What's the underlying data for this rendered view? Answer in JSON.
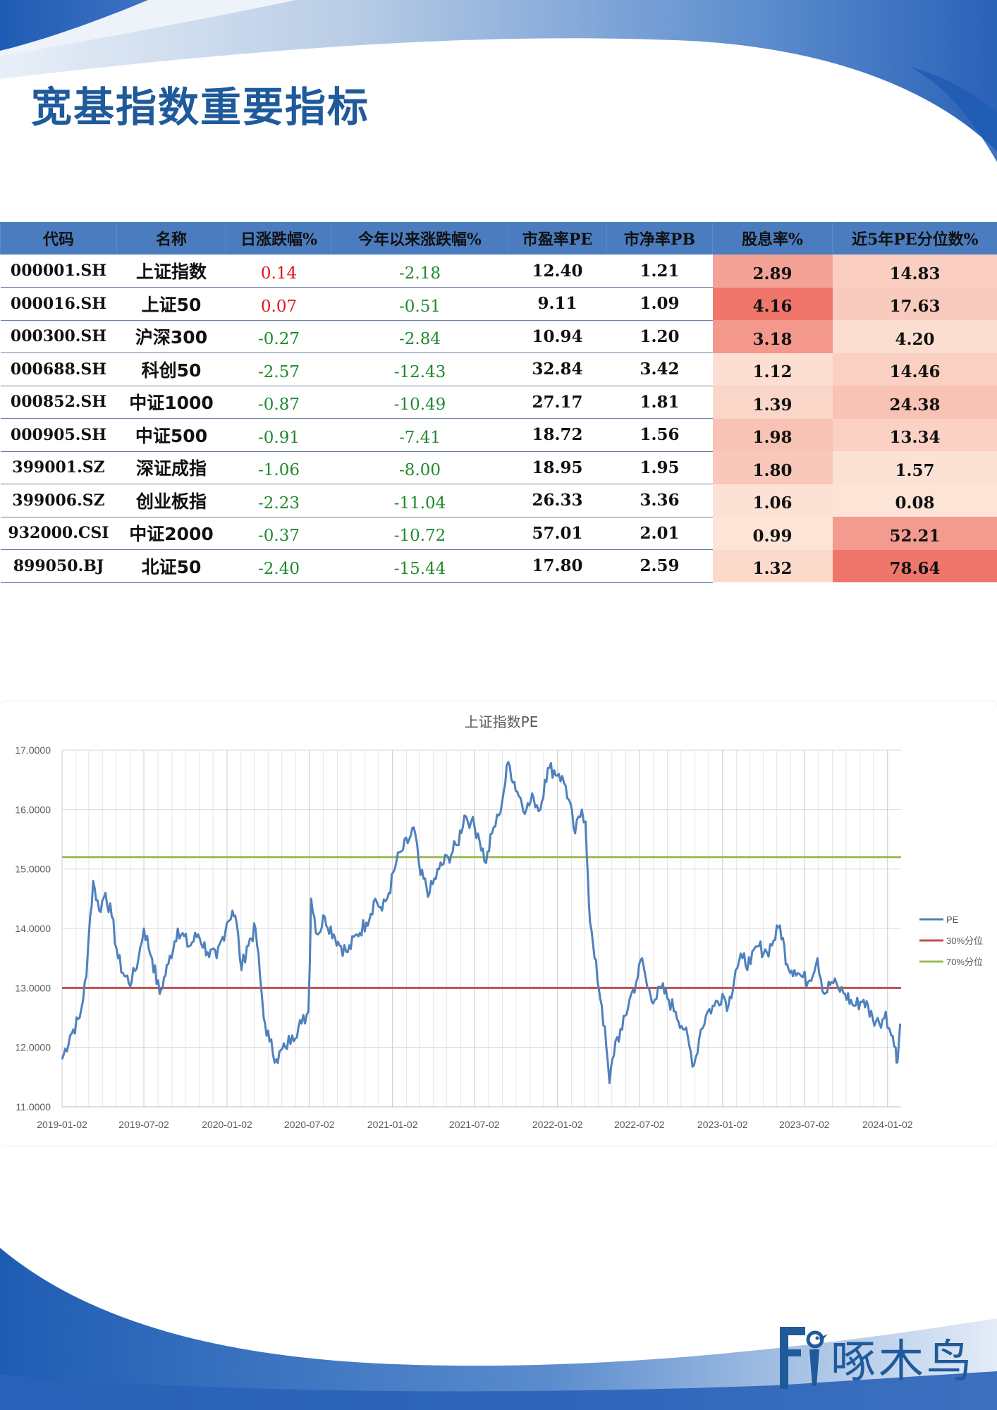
{
  "title": "宽基指数重要指标",
  "table": {
    "headers": [
      "代码",
      "名称",
      "日涨跌幅%",
      "今年以来涨跌幅%",
      "市盈率PE",
      "市净率PB",
      "股息率%",
      "近5年PE分位数%"
    ],
    "rows": [
      {
        "code": "000001.SH",
        "name": "上证指数",
        "day": "0.14",
        "ytd": "-2.18",
        "pe": "12.40",
        "pb": "1.21",
        "div": "2.89",
        "pct": "14.83"
      },
      {
        "code": "000016.SH",
        "name": "上证50",
        "day": "0.07",
        "ytd": "-0.51",
        "pe": "9.11",
        "pb": "1.09",
        "div": "4.16",
        "pct": "17.63"
      },
      {
        "code": "000300.SH",
        "name": "沪深300",
        "day": "-0.27",
        "ytd": "-2.84",
        "pe": "10.94",
        "pb": "1.20",
        "div": "3.18",
        "pct": "4.20"
      },
      {
        "code": "000688.SH",
        "name": "科创50",
        "day": "-2.57",
        "ytd": "-12.43",
        "pe": "32.84",
        "pb": "3.42",
        "div": "1.12",
        "pct": "14.46"
      },
      {
        "code": "000852.SH",
        "name": "中证1000",
        "day": "-0.87",
        "ytd": "-10.49",
        "pe": "27.17",
        "pb": "1.81",
        "div": "1.39",
        "pct": "24.38"
      },
      {
        "code": "000905.SH",
        "name": "中证500",
        "day": "-0.91",
        "ytd": "-7.41",
        "pe": "18.72",
        "pb": "1.56",
        "div": "1.98",
        "pct": "13.34"
      },
      {
        "code": "399001.SZ",
        "name": "深证成指",
        "day": "-1.06",
        "ytd": "-8.00",
        "pe": "18.95",
        "pb": "1.95",
        "div": "1.80",
        "pct": "1.57"
      },
      {
        "code": "399006.SZ",
        "name": "创业板指",
        "day": "-2.23",
        "ytd": "-11.04",
        "pe": "26.33",
        "pb": "3.36",
        "div": "1.06",
        "pct": "0.08"
      },
      {
        "code": "932000.CSI",
        "name": "中证2000",
        "day": "-0.37",
        "ytd": "-10.72",
        "pe": "57.01",
        "pb": "2.01",
        "div": "0.99",
        "pct": "52.21"
      },
      {
        "code": "899050.BJ",
        "name": "北证50",
        "day": "-2.40",
        "ytd": "-15.44",
        "pe": "17.80",
        "pb": "2.59",
        "div": "1.32",
        "pct": "78.64"
      }
    ]
  },
  "colors": {
    "brand": "#1f5a9b",
    "header_bg": "#4a7cbf",
    "positive": "#e0141b",
    "negative": "#1e8a2c",
    "pe_line": "#4f81bd",
    "line_30": "#c0504d",
    "line_70": "#9bbb59"
  },
  "chart_data": {
    "type": "line",
    "title": "上证指数PE",
    "ylim": [
      11,
      17
    ],
    "y_ticks": [
      "11.0000",
      "12.0000",
      "13.0000",
      "14.0000",
      "15.0000",
      "16.0000",
      "17.0000"
    ],
    "x_ticks": [
      "2019-01-02",
      "2019-07-02",
      "2020-01-02",
      "2020-07-02",
      "2021-01-02",
      "2021-07-02",
      "2022-01-02",
      "2022-07-02",
      "2023-01-02",
      "2023-07-02",
      "2024-01-02"
    ],
    "grid": true,
    "legend_position": "right",
    "series": [
      {
        "name": "PE",
        "color": "#4f81bd",
        "points": [
          [
            "2019-01-02",
            11.8
          ],
          [
            "2019-01-20",
            12.2
          ],
          [
            "2019-02-10",
            12.5
          ],
          [
            "2019-02-25",
            13.2
          ],
          [
            "2019-03-05",
            14.2
          ],
          [
            "2019-03-12",
            14.8
          ],
          [
            "2019-03-25",
            14.3
          ],
          [
            "2019-04-08",
            14.6
          ],
          [
            "2019-04-22",
            14.2
          ],
          [
            "2019-05-06",
            13.5
          ],
          [
            "2019-05-20",
            13.2
          ],
          [
            "2019-06-05",
            13.1
          ],
          [
            "2019-06-20",
            13.5
          ],
          [
            "2019-07-02",
            14.0
          ],
          [
            "2019-07-20",
            13.5
          ],
          [
            "2019-08-06",
            12.9
          ],
          [
            "2019-08-25",
            13.4
          ],
          [
            "2019-09-15",
            14.0
          ],
          [
            "2019-10-10",
            13.7
          ],
          [
            "2019-10-30",
            13.9
          ],
          [
            "2019-11-20",
            13.6
          ],
          [
            "2019-12-10",
            13.5
          ],
          [
            "2020-01-02",
            14.1
          ],
          [
            "2020-01-14",
            14.3
          ],
          [
            "2020-01-23",
            14.1
          ],
          [
            "2020-02-03",
            13.3
          ],
          [
            "2020-02-15",
            13.7
          ],
          [
            "2020-03-05",
            14.0
          ],
          [
            "2020-03-15",
            13.2
          ],
          [
            "2020-03-23",
            12.5
          ],
          [
            "2020-04-05",
            12.1
          ],
          [
            "2020-04-20",
            11.8
          ],
          [
            "2020-05-10",
            12.0
          ],
          [
            "2020-05-25",
            12.2
          ],
          [
            "2020-06-15",
            12.4
          ],
          [
            "2020-06-30",
            12.6
          ],
          [
            "2020-07-06",
            14.5
          ],
          [
            "2020-07-20",
            13.9
          ],
          [
            "2020-08-05",
            14.2
          ],
          [
            "2020-08-25",
            13.9
          ],
          [
            "2020-09-10",
            13.7
          ],
          [
            "2020-09-25",
            13.6
          ],
          [
            "2020-10-15",
            13.9
          ],
          [
            "2020-11-05",
            14.1
          ],
          [
            "2020-11-25",
            14.5
          ],
          [
            "2020-12-10",
            14.3
          ],
          [
            "2020-12-25",
            14.6
          ],
          [
            "2021-01-10",
            15.1
          ],
          [
            "2021-01-22",
            15.3
          ],
          [
            "2021-02-08",
            15.5
          ],
          [
            "2021-02-18",
            15.7
          ],
          [
            "2021-03-05",
            14.9
          ],
          [
            "2021-03-25",
            14.6
          ],
          [
            "2021-04-15",
            15.0
          ],
          [
            "2021-05-05",
            15.2
          ],
          [
            "2021-05-25",
            15.4
          ],
          [
            "2021-06-10",
            15.9
          ],
          [
            "2021-06-25",
            15.8
          ],
          [
            "2021-07-10",
            15.6
          ],
          [
            "2021-07-28",
            15.1
          ],
          [
            "2021-08-10",
            15.6
          ],
          [
            "2021-08-25",
            15.9
          ],
          [
            "2021-09-05",
            16.3
          ],
          [
            "2021-09-15",
            16.8
          ],
          [
            "2021-10-05",
            16.3
          ],
          [
            "2021-10-25",
            16.0
          ],
          [
            "2021-11-10",
            16.2
          ],
          [
            "2021-11-25",
            16.0
          ],
          [
            "2021-12-05",
            16.5
          ],
          [
            "2021-12-15",
            16.7
          ],
          [
            "2022-01-05",
            16.6
          ],
          [
            "2022-01-20",
            16.4
          ],
          [
            "2022-02-10",
            15.6
          ],
          [
            "2022-02-25",
            16.0
          ],
          [
            "2022-03-05",
            15.8
          ],
          [
            "2022-03-10",
            14.9
          ],
          [
            "2022-03-15",
            14.1
          ],
          [
            "2022-03-25",
            13.5
          ],
          [
            "2022-04-10",
            12.7
          ],
          [
            "2022-04-20",
            12.0
          ],
          [
            "2022-04-27",
            11.4
          ],
          [
            "2022-05-10",
            12.1
          ],
          [
            "2022-05-25",
            12.3
          ],
          [
            "2022-06-10",
            12.8
          ],
          [
            "2022-06-25",
            13.1
          ],
          [
            "2022-07-08",
            13.5
          ],
          [
            "2022-07-20",
            13.0
          ],
          [
            "2022-08-05",
            12.8
          ],
          [
            "2022-08-20",
            13.0
          ],
          [
            "2022-09-05",
            12.8
          ],
          [
            "2022-09-20",
            12.6
          ],
          [
            "2022-10-10",
            12.3
          ],
          [
            "2022-10-31",
            11.7
          ],
          [
            "2022-11-15",
            12.3
          ],
          [
            "2022-11-30",
            12.6
          ],
          [
            "2022-12-15",
            12.7
          ],
          [
            "2023-01-02",
            12.9
          ],
          [
            "2023-01-15",
            12.7
          ],
          [
            "2023-01-31",
            13.3
          ],
          [
            "2023-02-15",
            13.5
          ],
          [
            "2023-03-05",
            13.4
          ],
          [
            "2023-03-20",
            13.7
          ],
          [
            "2023-04-10",
            13.6
          ],
          [
            "2023-04-25",
            13.8
          ],
          [
            "2023-05-09",
            14.05
          ],
          [
            "2023-05-25",
            13.4
          ],
          [
            "2023-06-10",
            13.3
          ],
          [
            "2023-06-25",
            13.2
          ],
          [
            "2023-07-10",
            13.1
          ],
          [
            "2023-07-31",
            13.5
          ],
          [
            "2023-08-15",
            12.9
          ],
          [
            "2023-08-31",
            13.1
          ],
          [
            "2023-09-15",
            13.0
          ],
          [
            "2023-09-30",
            12.9
          ],
          [
            "2023-10-20",
            12.7
          ],
          [
            "2023-11-10",
            12.8
          ],
          [
            "2023-11-30",
            12.5
          ],
          [
            "2023-12-15",
            12.4
          ],
          [
            "2023-12-29",
            12.6
          ],
          [
            "2024-01-10",
            12.2
          ],
          [
            "2024-01-20",
            12.0
          ],
          [
            "2024-01-24",
            11.75
          ],
          [
            "2024-01-30",
            12.4
          ]
        ]
      },
      {
        "name": "30%分位",
        "color": "#c0504d",
        "value": 13.0
      },
      {
        "name": "70%分位",
        "color": "#9bbb59",
        "value": 15.2
      }
    ]
  },
  "logo": {
    "text": "啄木鸟"
  }
}
